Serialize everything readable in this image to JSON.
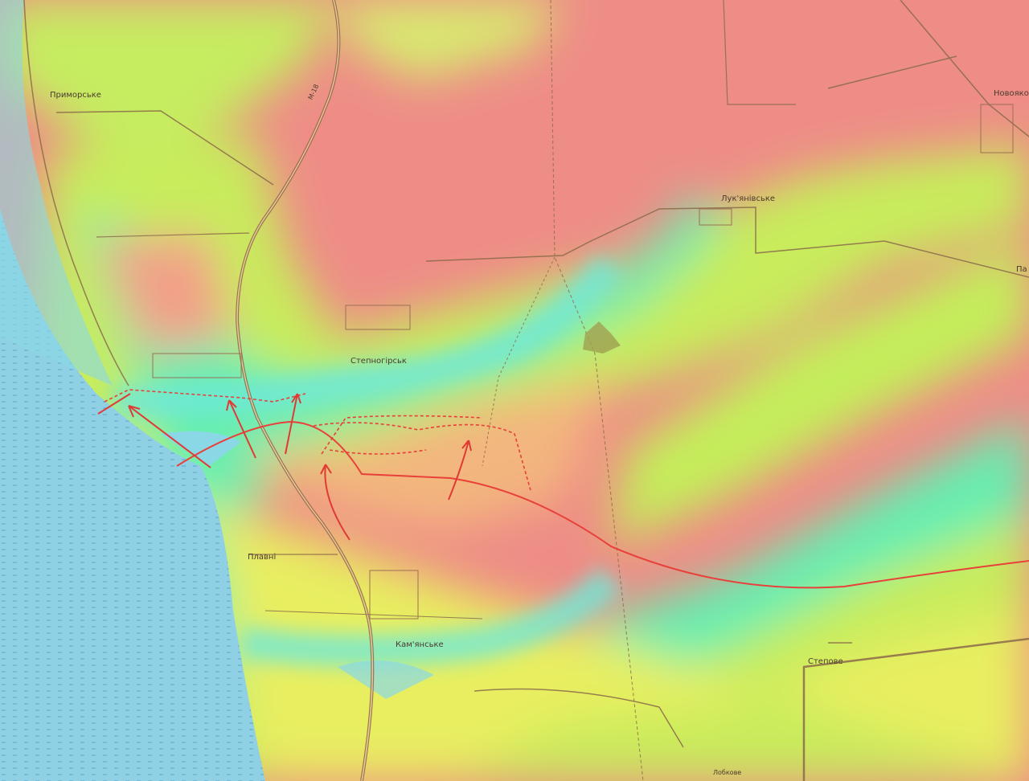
{
  "map": {
    "colors": {
      "high": "#ee8a86",
      "mid": "#f5c27a",
      "low": "#c9ec5a",
      "valley": "#63f0b4",
      "water": "#8fd3e6",
      "frontline": "#e8403a",
      "roads": "#8b6a4a"
    },
    "places": [
      {
        "name": "Приморське"
      },
      {
        "name": "Степногірськ"
      },
      {
        "name": "Лук'янівське"
      },
      {
        "name": "Новояко"
      },
      {
        "name": "Па"
      },
      {
        "name": "Плавні"
      },
      {
        "name": "Кам'янське"
      },
      {
        "name": "Степове"
      },
      {
        "name": "Лобкове"
      }
    ],
    "road_label": "М-18",
    "icons": [
      "advance-arrow",
      "frontline",
      "dashed-contested-line",
      "water-body"
    ]
  }
}
